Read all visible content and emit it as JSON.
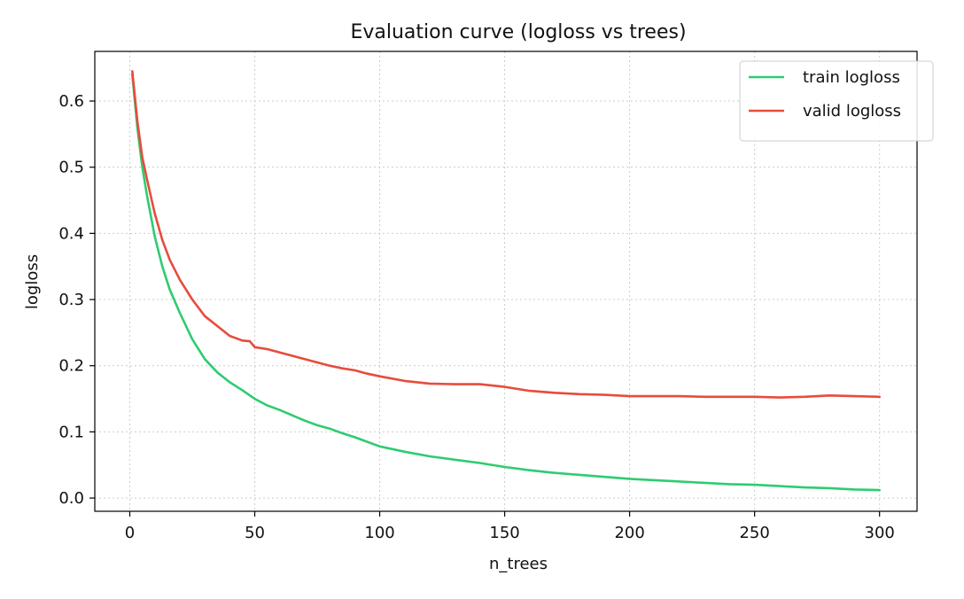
{
  "chart_data": {
    "type": "line",
    "title": "Evaluation curve (logloss vs trees)",
    "xlabel": "n_trees",
    "ylabel": "logloss",
    "xlim": [
      -14,
      315
    ],
    "ylim": [
      -0.02,
      0.675
    ],
    "xticks": [
      0,
      50,
      100,
      150,
      200,
      250,
      300
    ],
    "xtick_labels": [
      "0",
      "50",
      "100",
      "150",
      "200",
      "250",
      "300"
    ],
    "yticks": [
      0.0,
      0.1,
      0.2,
      0.3,
      0.4,
      0.5,
      0.6
    ],
    "ytick_labels": [
      "0.0",
      "0.1",
      "0.2",
      "0.3",
      "0.4",
      "0.5",
      "0.6"
    ],
    "grid": true,
    "legend_position": "top-right",
    "series": [
      {
        "name": "train logloss",
        "color": "#2ecc71",
        "x": [
          1,
          3,
          5,
          7,
          10,
          13,
          16,
          20,
          25,
          30,
          35,
          40,
          45,
          50,
          55,
          60,
          65,
          70,
          75,
          80,
          85,
          90,
          95,
          100,
          110,
          120,
          130,
          140,
          150,
          160,
          170,
          180,
          190,
          200,
          210,
          220,
          230,
          240,
          250,
          260,
          270,
          280,
          290,
          300
        ],
        "y": [
          0.64,
          0.56,
          0.5,
          0.455,
          0.395,
          0.35,
          0.315,
          0.28,
          0.24,
          0.21,
          0.19,
          0.175,
          0.163,
          0.15,
          0.14,
          0.133,
          0.125,
          0.117,
          0.11,
          0.105,
          0.098,
          0.092,
          0.085,
          0.078,
          0.07,
          0.063,
          0.058,
          0.053,
          0.047,
          0.042,
          0.038,
          0.035,
          0.032,
          0.029,
          0.027,
          0.025,
          0.023,
          0.021,
          0.02,
          0.018,
          0.016,
          0.015,
          0.013,
          0.012
        ]
      },
      {
        "name": "valid logloss",
        "color": "#e74c3c",
        "x": [
          1,
          3,
          5,
          7,
          10,
          13,
          16,
          20,
          25,
          30,
          35,
          40,
          45,
          48,
          50,
          55,
          60,
          65,
          70,
          75,
          80,
          85,
          90,
          95,
          100,
          110,
          120,
          130,
          140,
          150,
          160,
          170,
          180,
          190,
          200,
          210,
          220,
          230,
          240,
          250,
          260,
          270,
          280,
          290,
          300
        ],
        "y": [
          0.645,
          0.57,
          0.515,
          0.48,
          0.43,
          0.39,
          0.36,
          0.33,
          0.3,
          0.275,
          0.26,
          0.245,
          0.238,
          0.237,
          0.228,
          0.225,
          0.22,
          0.215,
          0.21,
          0.205,
          0.2,
          0.196,
          0.193,
          0.188,
          0.184,
          0.177,
          0.173,
          0.172,
          0.172,
          0.168,
          0.162,
          0.159,
          0.157,
          0.156,
          0.154,
          0.154,
          0.154,
          0.153,
          0.153,
          0.153,
          0.152,
          0.153,
          0.155,
          0.154,
          0.153
        ]
      }
    ]
  }
}
